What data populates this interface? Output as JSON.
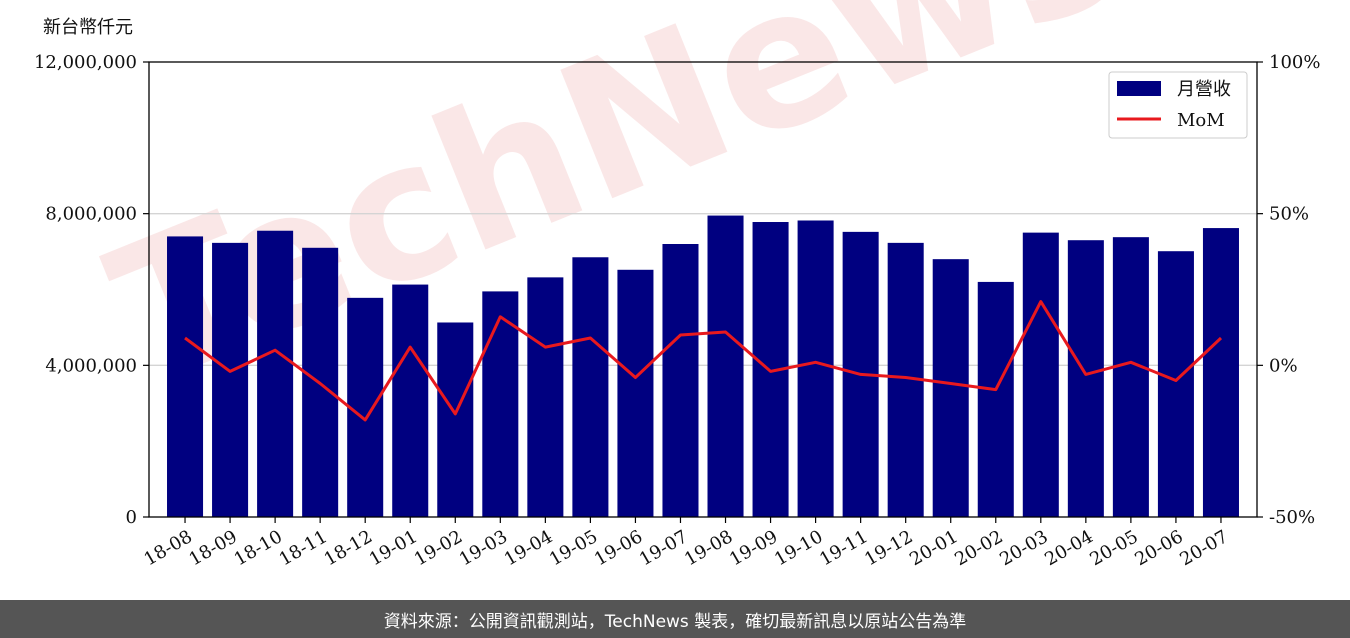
{
  "chart_data": {
    "type": "bar",
    "unit_label": "新台幣仟元",
    "categories": [
      "18-08",
      "18-09",
      "18-10",
      "18-11",
      "18-12",
      "19-01",
      "19-02",
      "19-03",
      "19-04",
      "19-05",
      "19-06",
      "19-07",
      "19-08",
      "19-09",
      "19-10",
      "19-11",
      "19-12",
      "20-01",
      "20-02",
      "20-03",
      "20-04",
      "20-05",
      "20-06",
      "20-07"
    ],
    "series": [
      {
        "name": "月營收",
        "type": "bar",
        "axis": "left",
        "color": "#000080",
        "values": [
          7400000,
          7230000,
          7550000,
          7100000,
          5780000,
          6130000,
          5130000,
          5950000,
          6320000,
          6850000,
          6520000,
          7200000,
          7950000,
          7780000,
          7820000,
          7520000,
          7230000,
          6800000,
          6200000,
          7500000,
          7300000,
          7380000,
          7010000,
          7620000
        ]
      },
      {
        "name": "MoM",
        "type": "line",
        "axis": "right",
        "color": "#e8191e",
        "values": [
          9,
          -2,
          5,
          -6,
          -18,
          6,
          -16,
          16,
          6,
          9,
          -4,
          10,
          11,
          -2,
          1,
          -3,
          -4,
          -6,
          -8,
          21,
          -3,
          1,
          -5,
          9
        ]
      }
    ],
    "y_left": {
      "ylim": [
        0,
        12000000
      ],
      "tick_labels": [
        "0",
        "4,000,000",
        "8,000,000",
        "12,000,000"
      ]
    },
    "y_right": {
      "ylim": [
        -50,
        100
      ],
      "tick_labels": [
        "-50%",
        "0%",
        "50%",
        "100%"
      ]
    },
    "grid": "horizontal",
    "legend_position": "top-right",
    "watermark": "TechNews"
  },
  "footer": {
    "text": "資料來源：公開資訊觀測站，TechNews 製表，確切最新訊息以原站公告為準"
  }
}
